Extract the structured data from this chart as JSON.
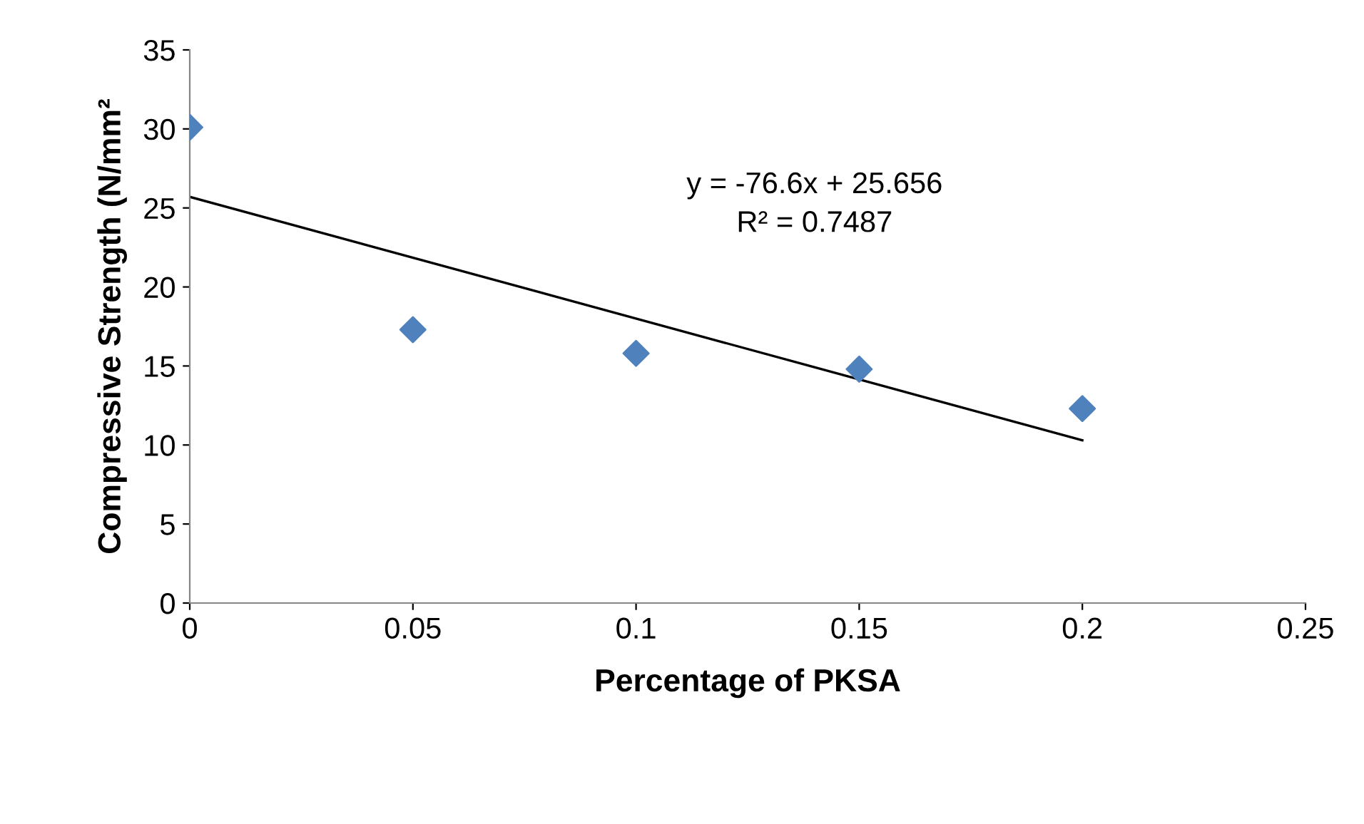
{
  "chart_data": {
    "type": "scatter",
    "xlabel": "Percentage of PKSA",
    "ylabel": "Compressive Strength (N/mm²",
    "x": [
      0,
      0.05,
      0.1,
      0.15,
      0.2
    ],
    "series": [
      {
        "color": "#4f81bd",
        "marker": "diamond",
        "values": [
          30.1,
          17.3,
          15.8,
          14.8,
          12.3
        ]
      },
      {
        "type": "line",
        "color": "#000000",
        "x": [
          0,
          0.2
        ],
        "values": [
          25.7,
          10.3
        ],
        "line_style": "solid",
        "marker": "none"
      }
    ],
    "annotations": [
      "y = -76.6x + 25.656",
      "R² = 0.7487"
    ],
    "xlim": [
      0,
      0.25
    ],
    "xticks": [
      0,
      0.05,
      0.1,
      0.15,
      0.2,
      0.25
    ],
    "ylim": [
      0,
      35
    ],
    "yticks": [
      0,
      5,
      10,
      15,
      20,
      25,
      30,
      35
    ],
    "grid": false,
    "legend": false
  }
}
